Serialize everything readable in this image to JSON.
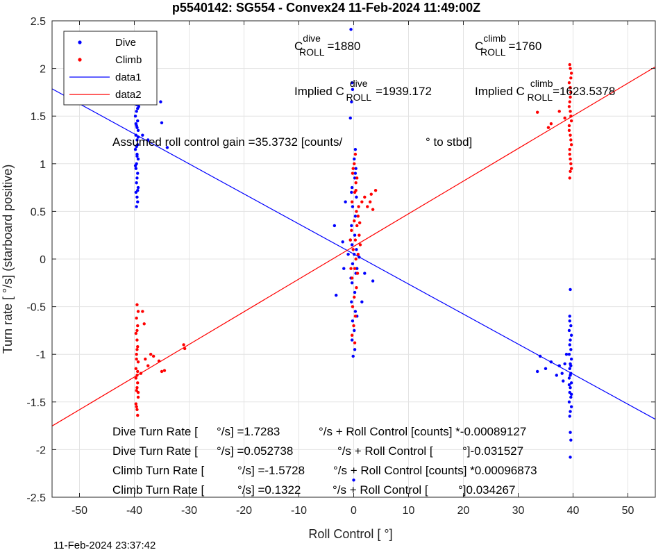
{
  "chart_data": {
    "type": "scatter",
    "title": "p5540142: SG554 - Convex24 11-Feb-2024 11:49:00Z",
    "xlabel": "Roll Control [   °]",
    "ylabel": "Turn rate [   °/s] (starboard positive)",
    "xlim": [
      -55,
      55
    ],
    "ylim": [
      -2.5,
      2.5
    ],
    "xticks": [
      -50,
      -40,
      -30,
      -20,
      -10,
      0,
      10,
      20,
      30,
      40,
      50
    ],
    "yticks": [
      -2.5,
      -2,
      -1.5,
      -1,
      -0.5,
      0,
      0.5,
      1,
      1.5,
      2,
      2.5
    ],
    "grid": true,
    "legend_position": "top-left",
    "colors": {
      "dive": "#0000ff",
      "climb": "#ff0000"
    },
    "series": [
      {
        "name": "Dive",
        "kind": "points",
        "color": "#0000ff",
        "points": [
          [
            -39.5,
            1.72
          ],
          [
            -39.7,
            1.65
          ],
          [
            -39.2,
            1.6
          ],
          [
            -39.6,
            1.55
          ],
          [
            -39.8,
            1.5
          ],
          [
            -39.4,
            1.45
          ],
          [
            -39.6,
            1.4
          ],
          [
            -39.3,
            1.35
          ],
          [
            -39.7,
            1.3
          ],
          [
            -39.5,
            1.25
          ],
          [
            -39.4,
            1.2
          ],
          [
            -39.8,
            1.15
          ],
          [
            -39.5,
            1.1
          ],
          [
            -39.3,
            1.05
          ],
          [
            -39.6,
            1.0
          ],
          [
            -39.7,
            0.95
          ],
          [
            -39.4,
            0.9
          ],
          [
            -39.5,
            0.85
          ],
          [
            -39.6,
            0.8
          ],
          [
            -39.3,
            0.75
          ],
          [
            -39.7,
            0.7
          ],
          [
            -39.5,
            0.65
          ],
          [
            -39.4,
            0.6
          ],
          [
            -39.6,
            0.55
          ],
          [
            -39.5,
            1.68
          ],
          [
            -39.4,
            1.58
          ],
          [
            -39.7,
            1.42
          ],
          [
            -39.3,
            1.28
          ],
          [
            -39.6,
            1.18
          ],
          [
            -39.5,
            1.08
          ],
          [
            -39.8,
            0.98
          ],
          [
            -39.4,
            0.72
          ],
          [
            -39.6,
            1.62
          ],
          [
            -39.5,
            1.38
          ],
          [
            -38.5,
            1.3
          ],
          [
            -35.2,
            1.65
          ],
          [
            -35.0,
            1.43
          ],
          [
            -37.5,
            1.25
          ],
          [
            -34.0,
            1.17
          ],
          [
            -0.5,
            2.41
          ],
          [
            -0.3,
            1.85
          ],
          [
            -0.2,
            1.78
          ],
          [
            -0.4,
            1.65
          ],
          [
            -0.6,
            1.48
          ],
          [
            0.3,
            1.15
          ],
          [
            0.1,
            1.05
          ],
          [
            0.4,
            0.95
          ],
          [
            0.2,
            0.85
          ],
          [
            -0.3,
            0.75
          ],
          [
            0.5,
            0.65
          ],
          [
            -0.2,
            0.55
          ],
          [
            0.3,
            0.45
          ],
          [
            -0.4,
            0.35
          ],
          [
            0.2,
            0.25
          ],
          [
            -0.3,
            0.15
          ],
          [
            0.1,
            0.05
          ],
          [
            -0.2,
            -0.05
          ],
          [
            0.4,
            -0.15
          ],
          [
            -0.3,
            -0.25
          ],
          [
            0.2,
            -0.35
          ],
          [
            -0.4,
            -0.45
          ],
          [
            0.3,
            -0.55
          ],
          [
            -0.2,
            -0.65
          ],
          [
            0.1,
            -0.75
          ],
          [
            -0.3,
            -0.85
          ],
          [
            0.2,
            -0.95
          ],
          [
            -0.1,
            -1.02
          ],
          [
            0.5,
            0.1
          ],
          [
            -0.6,
            0.2
          ],
          [
            0.6,
            -0.1
          ],
          [
            -0.5,
            -0.2
          ],
          [
            -3.5,
            0.35
          ],
          [
            -3.2,
            -0.38
          ],
          [
            -2.0,
            0.18
          ],
          [
            2.0,
            -0.15
          ],
          [
            3.5,
            -0.23
          ],
          [
            -1.5,
            0.6
          ],
          [
            1.5,
            -0.45
          ],
          [
            -1.0,
            0.05
          ],
          [
            1.0,
            0.02
          ],
          [
            -1.8,
            -0.1
          ],
          [
            0.0,
            -2.32
          ],
          [
            0.3,
            0.9
          ],
          [
            -0.4,
            0.7
          ],
          [
            0.6,
            -0.6
          ],
          [
            39.5,
            -0.32
          ],
          [
            39.4,
            -0.6
          ],
          [
            39.6,
            -0.7
          ],
          [
            39.3,
            -0.75
          ],
          [
            39.7,
            -0.8
          ],
          [
            39.5,
            -0.85
          ],
          [
            39.4,
            -0.9
          ],
          [
            39.6,
            -0.95
          ],
          [
            39.3,
            -1.0
          ],
          [
            39.7,
            -1.05
          ],
          [
            39.5,
            -1.1
          ],
          [
            39.4,
            -1.15
          ],
          [
            39.6,
            -1.2
          ],
          [
            39.3,
            -1.25
          ],
          [
            39.7,
            -1.3
          ],
          [
            39.5,
            -1.35
          ],
          [
            39.4,
            -1.4
          ],
          [
            39.6,
            -1.45
          ],
          [
            39.3,
            -1.5
          ],
          [
            39.7,
            -1.55
          ],
          [
            39.5,
            -1.6
          ],
          [
            39.4,
            -1.65
          ],
          [
            39.5,
            -1.82
          ],
          [
            39.6,
            -1.9
          ],
          [
            39.5,
            -2.08
          ],
          [
            39.4,
            -0.65
          ],
          [
            39.6,
            -1.12
          ],
          [
            39.3,
            -1.32
          ],
          [
            39.7,
            -1.42
          ],
          [
            39.5,
            -1.22
          ],
          [
            38.8,
            -1.0
          ],
          [
            38.5,
            -1.1
          ],
          [
            38.0,
            -1.2
          ],
          [
            37.5,
            -1.12
          ],
          [
            36.0,
            -1.08
          ],
          [
            35.0,
            -1.15
          ],
          [
            34.0,
            -1.02
          ],
          [
            33.5,
            -1.18
          ],
          [
            37.0,
            -1.22
          ],
          [
            38.2,
            -1.28
          ]
        ]
      },
      {
        "name": "Climb",
        "kind": "points",
        "color": "#ff0000",
        "points": [
          [
            -39.5,
            -0.48
          ],
          [
            -39.3,
            -0.55
          ],
          [
            -39.6,
            -0.62
          ],
          [
            -39.4,
            -0.7
          ],
          [
            -39.7,
            -0.78
          ],
          [
            -39.5,
            -0.85
          ],
          [
            -39.4,
            -0.92
          ],
          [
            -39.6,
            -1.0
          ],
          [
            -39.3,
            -1.08
          ],
          [
            -39.7,
            -1.15
          ],
          [
            -39.5,
            -1.22
          ],
          [
            -39.4,
            -1.3
          ],
          [
            -39.6,
            -1.38
          ],
          [
            -39.3,
            -1.45
          ],
          [
            -39.7,
            -1.52
          ],
          [
            -39.5,
            -1.58
          ],
          [
            -39.4,
            -1.64
          ],
          [
            -39.6,
            -1.55
          ],
          [
            -39.5,
            -1.35
          ],
          [
            -39.4,
            -1.18
          ],
          [
            -39.6,
            -1.05
          ],
          [
            -39.5,
            -0.95
          ],
          [
            -39.3,
            -1.4
          ],
          [
            -39.7,
            -1.25
          ],
          [
            -39.5,
            -0.75
          ],
          [
            -38.5,
            -0.55
          ],
          [
            -38.2,
            -0.68
          ],
          [
            -38.0,
            -1.05
          ],
          [
            -37.5,
            -1.12
          ],
          [
            -36.5,
            -1.02
          ],
          [
            -35.5,
            -1.07
          ],
          [
            -35.0,
            -1.18
          ],
          [
            -34.5,
            -1.17
          ],
          [
            -37.0,
            -1.0
          ],
          [
            -38.8,
            -1.2
          ],
          [
            -31.0,
            -0.9
          ],
          [
            -30.8,
            -0.94
          ],
          [
            0.3,
            1.1
          ],
          [
            0.1,
            1.0
          ],
          [
            -0.2,
            0.9
          ],
          [
            0.4,
            0.8
          ],
          [
            0.2,
            0.7
          ],
          [
            -0.3,
            0.6
          ],
          [
            0.5,
            0.5
          ],
          [
            0.1,
            0.4
          ],
          [
            -0.4,
            0.3
          ],
          [
            0.3,
            0.2
          ],
          [
            -0.1,
            0.1
          ],
          [
            0.4,
            0.0
          ],
          [
            0.2,
            -0.1
          ],
          [
            -0.3,
            -0.2
          ],
          [
            0.5,
            -0.3
          ],
          [
            0.1,
            -0.4
          ],
          [
            -0.2,
            -0.5
          ],
          [
            0.3,
            -0.6
          ],
          [
            0.0,
            -0.7
          ],
          [
            -0.3,
            -0.8
          ],
          [
            0.2,
            -0.88
          ],
          [
            0.6,
            0.35
          ],
          [
            0.8,
            0.45
          ],
          [
            1.0,
            0.25
          ],
          [
            0.9,
            0.55
          ],
          [
            1.5,
            0.6
          ],
          [
            2.0,
            0.65
          ],
          [
            2.5,
            0.55
          ],
          [
            3.0,
            0.6
          ],
          [
            3.5,
            0.52
          ],
          [
            4.0,
            0.72
          ],
          [
            3.2,
            0.68
          ],
          [
            1.2,
            0.15
          ],
          [
            0.7,
            -0.15
          ],
          [
            -0.6,
            0.2
          ],
          [
            -0.5,
            -0.1
          ],
          [
            0.6,
            0.85
          ],
          [
            -0.1,
            0.95
          ],
          [
            0.4,
            0.72
          ],
          [
            1.1,
            0.38
          ],
          [
            0.8,
            0.05
          ],
          [
            39.5,
            2.0
          ],
          [
            39.7,
            1.95
          ],
          [
            39.3,
            1.85
          ],
          [
            39.6,
            1.75
          ],
          [
            39.4,
            1.65
          ],
          [
            39.5,
            1.55
          ],
          [
            39.7,
            1.45
          ],
          [
            39.3,
            1.35
          ],
          [
            39.6,
            1.25
          ],
          [
            39.4,
            1.15
          ],
          [
            39.5,
            1.05
          ],
          [
            39.7,
            0.95
          ],
          [
            39.4,
            0.85
          ],
          [
            39.6,
            1.5
          ],
          [
            39.3,
            1.4
          ],
          [
            39.5,
            1.3
          ],
          [
            39.7,
            1.2
          ],
          [
            39.4,
            1.1
          ],
          [
            39.6,
            1.0
          ],
          [
            39.5,
            1.7
          ],
          [
            39.3,
            1.6
          ],
          [
            39.5,
            1.8
          ],
          [
            39.4,
            2.04
          ],
          [
            39.6,
            1.9
          ],
          [
            39.5,
            0.92
          ],
          [
            37.5,
            1.55
          ],
          [
            36.0,
            1.42
          ],
          [
            35.5,
            1.38
          ],
          [
            33.5,
            1.54
          ],
          [
            38.5,
            1.48
          ]
        ]
      },
      {
        "name": "data1",
        "kind": "line",
        "color": "#0000ff",
        "intercept": 0.052738,
        "slope": -0.031527
      },
      {
        "name": "data2",
        "kind": "line",
        "color": "#ff0000",
        "intercept": 0.1322,
        "slope": 0.034267
      }
    ],
    "annotations": {
      "c_dive_prefix": "C",
      "c_dive_sup": "dive",
      "c_dive_sub": "ROLL",
      "c_dive_value": "=1880",
      "c_climb_prefix": "C",
      "c_climb_sup": "climb",
      "c_climb_sub": "ROLL",
      "c_climb_value": "=1760",
      "implied_dive_prefix": "Implied C",
      "implied_dive_sup": "dive",
      "implied_dive_sub": "ROLL",
      "implied_dive_value": "=1939.172",
      "implied_climb_prefix": "Implied C",
      "implied_climb_sup": "climb",
      "implied_climb_sub": "ROLL",
      "implied_climb_value": "=1623.5378",
      "gain_text_1": "Assumed roll control gain =35.3732 [counts/",
      "gain_text_2": "° to stbd]",
      "eq1_a": "Dive Turn Rate [",
      "eq1_b": "°/s] =1.7283",
      "eq1_c": "°/s + Roll Control [counts] *-0.00089127",
      "eq2_a": "Dive Turn Rate [",
      "eq2_b": "°/s] =0.052738",
      "eq2_c": "°/s + Roll Control [",
      "eq2_d": "°]-0.031527",
      "eq3_a": "Climb Turn Rate [",
      "eq3_b": "°/s] =-1.5728",
      "eq3_c": "°/s + Roll Control [counts] *0.00096873",
      "eq4_a": "Climb Turn Rate [",
      "eq4_b": "°/s] =0.1322",
      "eq4_c": "°/s + Roll Control [",
      "eq4_d": "°]0.034267"
    },
    "timestamp": "11-Feb-2024 23:37:42"
  }
}
